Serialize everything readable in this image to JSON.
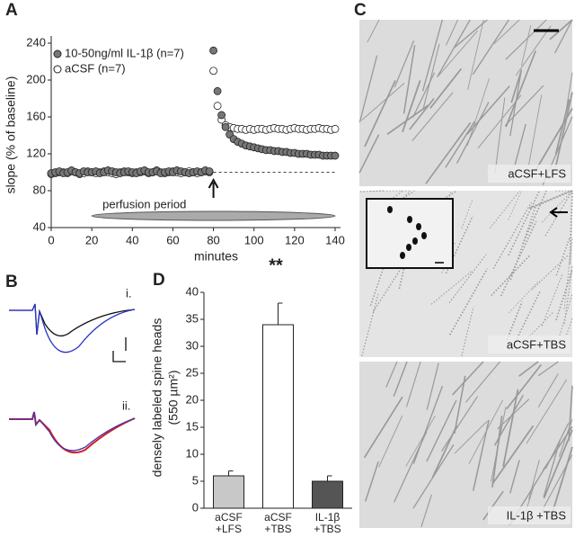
{
  "chart_data": [
    {
      "type": "scatter",
      "panel_label": "A",
      "x_label": "minutes",
      "y_label": "slope (% of baseline)",
      "x": [
        0,
        2,
        4,
        6,
        8,
        10,
        12,
        14,
        16,
        18,
        20,
        22,
        24,
        26,
        28,
        30,
        32,
        34,
        36,
        38,
        40,
        42,
        44,
        46,
        48,
        50,
        52,
        54,
        56,
        58,
        60,
        62,
        64,
        66,
        68,
        70,
        72,
        74,
        76,
        78,
        80,
        82,
        84,
        86,
        88,
        90,
        92,
        94,
        96,
        98,
        100,
        102,
        104,
        106,
        108,
        110,
        112,
        114,
        116,
        118,
        120,
        122,
        124,
        126,
        128,
        130,
        132,
        134,
        136,
        138,
        140
      ],
      "series": [
        {
          "name": "10-50ng/ml IL-1β (n=7)",
          "color": "#777777",
          "filled": true,
          "values": [
            99,
            100,
            101,
            99,
            100,
            102,
            100,
            99,
            101,
            100,
            100,
            101,
            99,
            100,
            102,
            101,
            100,
            99,
            100,
            101,
            100,
            99,
            101,
            102,
            100,
            100,
            101,
            99,
            100,
            101,
            100,
            102,
            101,
            100,
            99,
            100,
            101,
            100,
            102,
            101,
            232,
            188,
            162,
            149,
            141,
            136,
            133,
            131,
            129,
            128,
            127,
            126,
            125,
            124,
            124,
            123,
            123,
            122,
            122,
            121,
            121,
            120,
            120,
            120,
            119,
            119,
            119,
            118,
            118,
            118,
            118
          ]
        },
        {
          "name": "aCSF (n=7)",
          "color": "#ffffff",
          "filled": false,
          "values": [
            98,
            99,
            100,
            100,
            99,
            101,
            100,
            98,
            99,
            101,
            100,
            99,
            100,
            101,
            100,
            99,
            98,
            100,
            101,
            100,
            99,
            100,
            100,
            101,
            99,
            100,
            102,
            100,
            99,
            100,
            101,
            100,
            99,
            100,
            101,
            100,
            99,
            100,
            101,
            100,
            210,
            172,
            157,
            151,
            149,
            148,
            147,
            147,
            146,
            147,
            146,
            147,
            147,
            146,
            147,
            148,
            147,
            147,
            146,
            147,
            148,
            147,
            147,
            146,
            147,
            147,
            148,
            147,
            147,
            146,
            147
          ]
        }
      ],
      "xlim": [
        0,
        140
      ],
      "xticks": [
        0,
        20,
        40,
        60,
        80,
        100,
        120,
        140
      ],
      "ylim": [
        40,
        240
      ],
      "yticks": [
        40,
        80,
        120,
        160,
        200,
        240
      ],
      "reference_line": 100,
      "arrow_x": 80,
      "period": {
        "label": "perfusion period",
        "start": 20,
        "end": 140
      }
    },
    {
      "type": "bar",
      "panel_label": "D",
      "y_label": [
        "densely labeled spine heads",
        "(550 µm²)"
      ],
      "categories": [
        "aCSF\n+LFS",
        "aCSF\n+TBS",
        "IL-1β\n+TBS"
      ],
      "values": [
        6,
        34,
        5
      ],
      "errors": [
        0.9,
        4,
        1
      ],
      "colors": [
        "#c8c8c8",
        "#ffffff",
        "#555555"
      ],
      "annotation": "**",
      "ylim": [
        0,
        40
      ],
      "yticks": [
        0,
        5,
        10,
        15,
        20,
        25,
        30,
        35,
        40
      ]
    }
  ],
  "panel_b": {
    "label": "B",
    "traces": [
      "i.",
      "ii."
    ]
  },
  "panel_c": {
    "label": "C",
    "images": [
      "aCSF+LFS",
      "aCSF+TBS",
      "IL-1β +TBS"
    ]
  }
}
